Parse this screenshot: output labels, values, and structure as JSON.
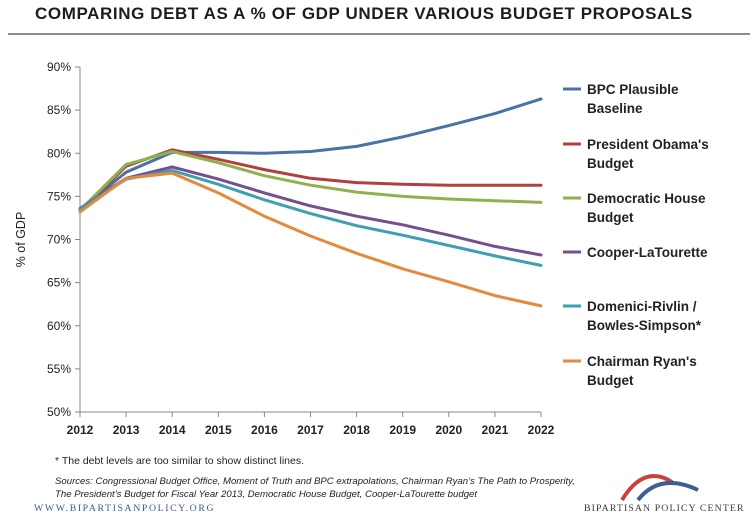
{
  "header": {
    "title": "COMPARING DEBT AS A % OF GDP UNDER VARIOUS BUDGET PROPOSALS"
  },
  "chart_data": {
    "type": "line",
    "title": "COMPARING DEBT AS A % OF GDP UNDER VARIOUS BUDGET PROPOSALS",
    "xlabel": "",
    "ylabel": "% of GDP",
    "x": [
      2012,
      2013,
      2014,
      2015,
      2016,
      2017,
      2018,
      2019,
      2020,
      2021,
      2022
    ],
    "ylim": [
      50,
      90
    ],
    "yticks": [
      50,
      55,
      60,
      65,
      70,
      75,
      80,
      85,
      90
    ],
    "ytick_labels": [
      "50%",
      "55%",
      "60%",
      "65%",
      "70%",
      "75%",
      "80%",
      "85%",
      "90%"
    ],
    "grid": false,
    "legend": "right",
    "series": [
      {
        "name": "BPC Plausible Baseline",
        "label_lines": [
          "BPC Plausible",
          "Baseline"
        ],
        "color": "#4a72a6",
        "values": [
          73.5,
          77.8,
          80.1,
          80.1,
          80.0,
          80.2,
          80.8,
          81.9,
          83.2,
          84.6,
          86.3
        ]
      },
      {
        "name": "President Obama's Budget",
        "label_lines": [
          "President Obama's",
          "Budget"
        ],
        "color": "#b13f3d",
        "values": [
          73.3,
          78.5,
          80.4,
          79.3,
          78.1,
          77.1,
          76.6,
          76.4,
          76.3,
          76.3,
          76.3
        ]
      },
      {
        "name": "Democratic House Budget",
        "label_lines": [
          "Democratic House",
          "Budget"
        ],
        "color": "#8eb14d",
        "values": [
          73.4,
          78.7,
          80.2,
          78.9,
          77.4,
          76.3,
          75.5,
          75.0,
          74.7,
          74.5,
          74.3
        ]
      },
      {
        "name": "Cooper-LaTourette",
        "label_lines": [
          "Cooper-LaTourette"
        ],
        "color": "#74508f",
        "values": [
          73.6,
          77.1,
          78.4,
          77.0,
          75.4,
          73.9,
          72.7,
          71.7,
          70.5,
          69.2,
          68.2
        ]
      },
      {
        "name": "Domenici-Rivlin / Bowles-Simpson*",
        "label_lines": [
          "Domenici-Rivlin /",
          "Bowles-Simpson*"
        ],
        "color": "#3e9fb3",
        "values": [
          73.5,
          77.0,
          78.0,
          76.4,
          74.6,
          73.0,
          71.6,
          70.5,
          69.3,
          68.1,
          67.0
        ]
      },
      {
        "name": "Chairman Ryan's Budget",
        "label_lines": [
          "Chairman Ryan's",
          "Budget"
        ],
        "color": "#e38a3d",
        "values": [
          73.2,
          77.1,
          77.7,
          75.4,
          72.7,
          70.4,
          68.4,
          66.6,
          65.1,
          63.5,
          62.3
        ]
      }
    ]
  },
  "footnote": "* The debt levels are too similar to show distinct lines.",
  "sources": "Sources: Congressional Budget Office, Moment of Truth and BPC extrapolations, Chairman Ryan’s The Path to Prosperity, The President’s Budget for Fiscal Year 2013, Democratic House Budget, Cooper-LaTourette budget",
  "footer": {
    "website": "WWW.BIPARTISANPOLICY.ORG",
    "brand": "BIPARTISAN POLICY CENTER"
  },
  "colors": {
    "logo_red": "#c8413b",
    "logo_blue": "#3b5f93"
  }
}
